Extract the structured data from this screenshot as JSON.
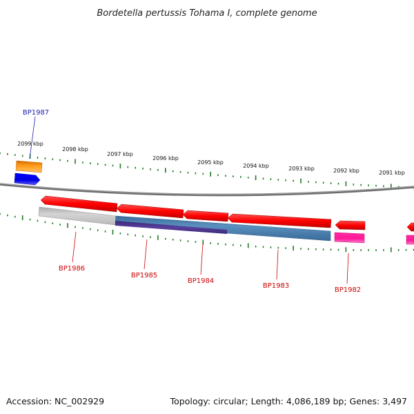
{
  "title": "Bordetella pertussis Tohama I, complete genome",
  "footer": {
    "accession": "Accession: NC_002929",
    "summary": "Topology: circular; Length: 4,086,189 bp; Genes: 3,497"
  },
  "scale_labels": [
    "2099 kbp",
    "2098 kbp",
    "2097 kbp",
    "2096 kbp",
    "2095 kbp",
    "2094 kbp",
    "2093 kbp",
    "2092 kbp",
    "2091 kbp"
  ],
  "genes": [
    {
      "label": "BP1987",
      "color": "#1a1aaa"
    },
    {
      "label": "BP1986",
      "color": "#cc0000"
    },
    {
      "label": "BP1985",
      "color": "#cc0000"
    },
    {
      "label": "BP1984",
      "color": "#cc0000"
    },
    {
      "label": "BP1983",
      "color": "#cc0000"
    },
    {
      "label": "BP1982",
      "color": "#cc0000"
    }
  ],
  "colors": {
    "backbone": "#808080",
    "tick": "#1e7a1e",
    "cds": "#ff0000",
    "gene_orange": "#ff9a1a",
    "gene_blue": "#0000ff",
    "gene_magenta": "#ff1a9a",
    "band_grey": "#c8c8c8",
    "band_blue": "#4a7fb0",
    "band_purple": "#5a3f9a"
  }
}
